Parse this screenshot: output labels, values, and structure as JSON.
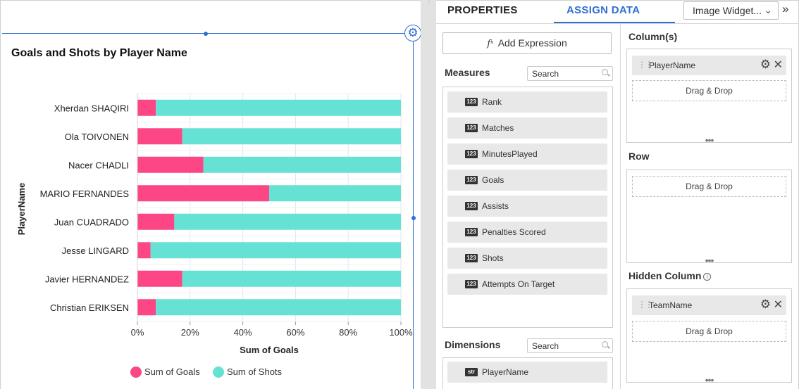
{
  "chart_data": {
    "type": "bar",
    "orientation": "horizontal",
    "stacked": "percent",
    "title": "Goals and Shots by Player Name",
    "xlabel": "Sum of Goals",
    "ylabel": "PlayerName",
    "categories": [
      "Xherdan SHAQIRI",
      "Ola TOIVONEN",
      "Nacer CHADLI",
      "MARIO FERNANDES",
      "Juan CUADRADO",
      "Jesse LINGARD",
      "Javier HERNANDEZ",
      "Christian ERIKSEN"
    ],
    "series": [
      {
        "name": "Sum of Goals",
        "color": "#fc4685",
        "values": [
          7,
          17,
          25,
          50,
          14,
          5,
          17,
          7
        ]
      },
      {
        "name": "Sum of Shots",
        "color": "#66e2d5",
        "values": [
          93,
          83,
          75,
          50,
          86,
          95,
          83,
          93
        ]
      }
    ],
    "xlim": [
      0,
      100
    ],
    "xticks": [
      "0%",
      "20%",
      "40%",
      "60%",
      "80%",
      "100%"
    ],
    "grid": true,
    "legend": "bottom"
  },
  "tabs": {
    "properties": "PROPERTIES",
    "assign_data": "ASSIGN DATA"
  },
  "widget_select": "Image Widget...",
  "add_expression": "Add Expression",
  "measures": {
    "label": "Measures",
    "search_placeholder": "Search",
    "items": [
      {
        "type": "123",
        "name": "Rank"
      },
      {
        "type": "123",
        "name": "Matches"
      },
      {
        "type": "123",
        "name": "MinutesPlayed"
      },
      {
        "type": "123",
        "name": "Goals"
      },
      {
        "type": "123",
        "name": "Assists"
      },
      {
        "type": "123",
        "name": "Penalties Scored"
      },
      {
        "type": "123",
        "name": "Shots"
      },
      {
        "type": "123",
        "name": "Attempts On Target"
      }
    ]
  },
  "dimensions": {
    "label": "Dimensions",
    "search_placeholder": "Search",
    "items": [
      {
        "type": "str",
        "name": "PlayerName"
      }
    ]
  },
  "columns": {
    "label": "Column(s)",
    "chip": "PlayerName",
    "drop": "Drag & Drop"
  },
  "row": {
    "label": "Row",
    "drop": "Drag & Drop"
  },
  "hidden_column": {
    "label": "Hidden Column",
    "chip": "TeamName",
    "drop": "Drag & Drop"
  }
}
